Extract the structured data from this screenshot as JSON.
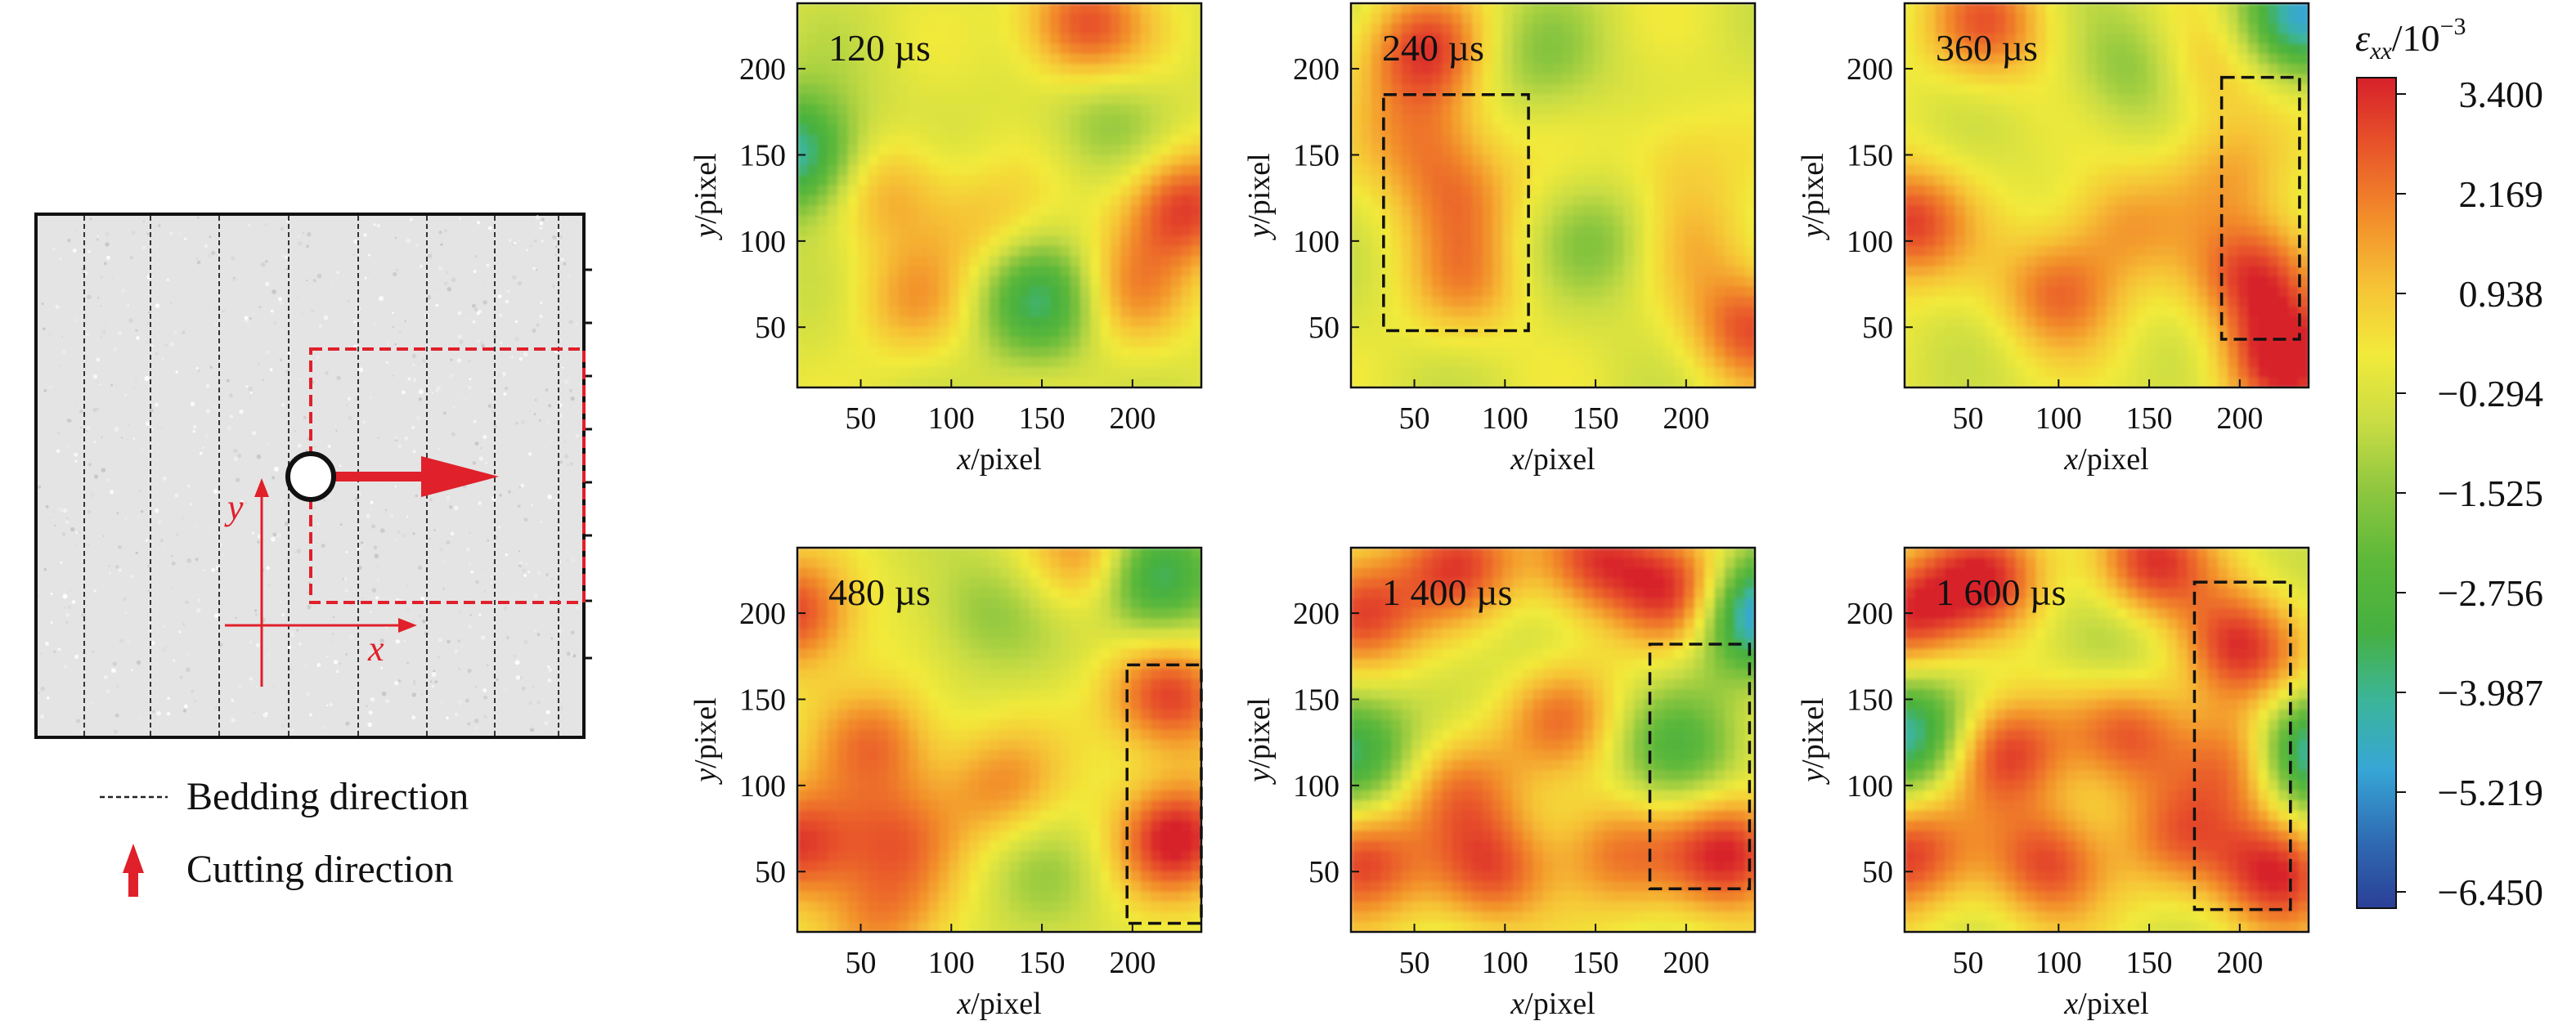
{
  "schematic": {
    "axis_x_label": "x",
    "axis_y_label": "y",
    "legend": [
      {
        "label": "Bedding direction",
        "icon": "dashed-line-icon"
      },
      {
        "label": "Cutting direction",
        "icon": "red-up-arrow-icon"
      }
    ],
    "colors": {
      "specimen_fill": "#e4e4e4",
      "accent_red": "#e0202a",
      "bedding_line": "#222222"
    }
  },
  "colorbar": {
    "title_symbol": "ε",
    "title_subscript": "xx",
    "title_unit": "/10",
    "title_exponent": "−3",
    "ticks": [
      "3.400",
      "2.169",
      "0.938",
      "−0.294",
      "−1.525",
      "−2.756",
      "−3.987",
      "−5.219",
      "−6.450"
    ],
    "range": [
      -6.45,
      3.4
    ],
    "colors": [
      "#2b3f96",
      "#2f6cb3",
      "#37a6d6",
      "#3cb59a",
      "#46b040",
      "#5cb83a",
      "#8cc63f",
      "#c8dc44",
      "#f2ea3a",
      "#f6c236",
      "#f28c2a",
      "#e8552a",
      "#d7202a"
    ]
  },
  "chart_data": [
    {
      "type": "heatmap",
      "panel": "120 µs",
      "time_label": "120 µs",
      "xlabel": "x/pixel",
      "ylabel": "y/pixel",
      "xticks": [
        "50",
        "100",
        "150",
        "200"
      ],
      "yticks": [
        "50",
        "100",
        "150",
        "200"
      ],
      "xlim": [
        15,
        238
      ],
      "ylim": [
        15,
        238
      ],
      "highlight_box": null,
      "hotspots": [
        [
          65,
          130,
          1.4
        ],
        [
          78,
          65,
          1.2
        ],
        [
          120,
          110,
          0.8
        ],
        [
          172,
          225,
          2.8
        ],
        [
          228,
          120,
          3.0
        ],
        [
          195,
          70,
          1.6
        ],
        [
          15,
          150,
          -4.5
        ],
        [
          150,
          65,
          -3.5
        ],
        [
          60,
          200,
          -0.5
        ],
        [
          185,
          170,
          -1.5
        ]
      ]
    },
    {
      "type": "heatmap",
      "panel": "240 µs",
      "time_label": "240 µs",
      "xlabel": "x/pixel",
      "ylabel": "y/pixel",
      "xticks": [
        "50",
        "100",
        "150",
        "200"
      ],
      "yticks": [
        "50",
        "100",
        "150",
        "200"
      ],
      "xlim": [
        15,
        238
      ],
      "ylim": [
        15,
        238
      ],
      "highlight_box": [
        33,
        113,
        48,
        185
      ],
      "hotspots": [
        [
          55,
          210,
          2.8
        ],
        [
          55,
          160,
          1.6
        ],
        [
          75,
          125,
          1.6
        ],
        [
          78,
          75,
          1.4
        ],
        [
          195,
          150,
          0.8
        ],
        [
          235,
          50,
          2.6
        ],
        [
          205,
          100,
          0.8
        ],
        [
          120,
          205,
          -1.5
        ],
        [
          155,
          100,
          -1.6
        ]
      ]
    },
    {
      "type": "heatmap",
      "panel": "360 µs",
      "time_label": "360 µs",
      "xlabel": "x/pixel",
      "ylabel": "y/pixel",
      "xticks": [
        "50",
        "100",
        "150",
        "200"
      ],
      "yticks": [
        "50",
        "100",
        "150",
        "200"
      ],
      "xlim": [
        15,
        238
      ],
      "ylim": [
        15,
        238
      ],
      "highlight_box": [
        190,
        233,
        43,
        195
      ],
      "hotspots": [
        [
          60,
          225,
          2.4
        ],
        [
          15,
          110,
          3.0
        ],
        [
          100,
          70,
          2.2
        ],
        [
          135,
          110,
          1.4
        ],
        [
          180,
          200,
          1.2
        ],
        [
          210,
          80,
          3.0
        ],
        [
          225,
          30,
          3.4
        ],
        [
          195,
          140,
          1.2
        ],
        [
          236,
          230,
          -4.5
        ],
        [
          140,
          200,
          -1.8
        ]
      ]
    },
    {
      "type": "heatmap",
      "panel": "480 µs",
      "time_label": "480 µs",
      "xlabel": "x/pixel",
      "ylabel": "y/pixel",
      "xticks": [
        "50",
        "100",
        "150",
        "200"
      ],
      "yticks": [
        "50",
        "100",
        "150",
        "200"
      ],
      "xlim": [
        15,
        238
      ],
      "ylim": [
        15,
        238
      ],
      "highlight_box": [
        197,
        238,
        20,
        170
      ],
      "hotspots": [
        [
          15,
          200,
          3.0
        ],
        [
          15,
          65,
          3.0
        ],
        [
          60,
          125,
          2.0
        ],
        [
          70,
          70,
          1.8
        ],
        [
          125,
          100,
          1.6
        ],
        [
          180,
          230,
          2.4
        ],
        [
          220,
          150,
          3.0
        ],
        [
          225,
          70,
          3.4
        ],
        [
          210,
          220,
          -4.5
        ],
        [
          115,
          200,
          -1.5
        ],
        [
          150,
          50,
          -1.0
        ],
        [
          60,
          22,
          1.6
        ]
      ]
    },
    {
      "type": "heatmap",
      "panel": "1 400 µs",
      "time_label": "1 400 µs",
      "xlabel": "x/pixel",
      "ylabel": "y/pixel",
      "xticks": [
        "50",
        "100",
        "150",
        "200"
      ],
      "yticks": [
        "50",
        "100",
        "150",
        "200"
      ],
      "xlim": [
        15,
        238
      ],
      "ylim": [
        15,
        238
      ],
      "highlight_box": [
        180,
        235,
        40,
        182
      ],
      "hotspots": [
        [
          20,
          200,
          3.2
        ],
        [
          20,
          55,
          3.2
        ],
        [
          75,
          100,
          2.0
        ],
        [
          95,
          50,
          2.4
        ],
        [
          130,
          140,
          1.8
        ],
        [
          150,
          230,
          3.0
        ],
        [
          200,
          210,
          3.2
        ],
        [
          225,
          60,
          3.4
        ],
        [
          235,
          200,
          -5.5
        ],
        [
          15,
          120,
          -4.0
        ],
        [
          195,
          120,
          -2.5
        ],
        [
          110,
          180,
          -0.8
        ],
        [
          75,
          230,
          2.6
        ],
        [
          160,
          60,
          2.0
        ]
      ]
    },
    {
      "type": "heatmap",
      "panel": "1 600 µs",
      "time_label": "1 600 µs",
      "xlabel": "x/pixel",
      "ylabel": "y/pixel",
      "xticks": [
        "50",
        "100",
        "150",
        "200"
      ],
      "yticks": [
        "50",
        "100",
        "150",
        "200"
      ],
      "xlim": [
        15,
        238
      ],
      "ylim": [
        15,
        238
      ],
      "highlight_box": [
        175,
        228,
        28,
        218
      ],
      "hotspots": [
        [
          15,
          200,
          3.0
        ],
        [
          15,
          60,
          3.0
        ],
        [
          70,
          120,
          3.0
        ],
        [
          95,
          55,
          2.8
        ],
        [
          140,
          130,
          2.4
        ],
        [
          150,
          230,
          3.0
        ],
        [
          200,
          180,
          3.2
        ],
        [
          205,
          115,
          3.0
        ],
        [
          220,
          50,
          3.4
        ],
        [
          235,
          120,
          -5.5
        ],
        [
          15,
          130,
          -4.5
        ],
        [
          130,
          180,
          -1.5
        ],
        [
          60,
          220,
          2.8
        ],
        [
          165,
          70,
          1.8
        ]
      ]
    }
  ]
}
